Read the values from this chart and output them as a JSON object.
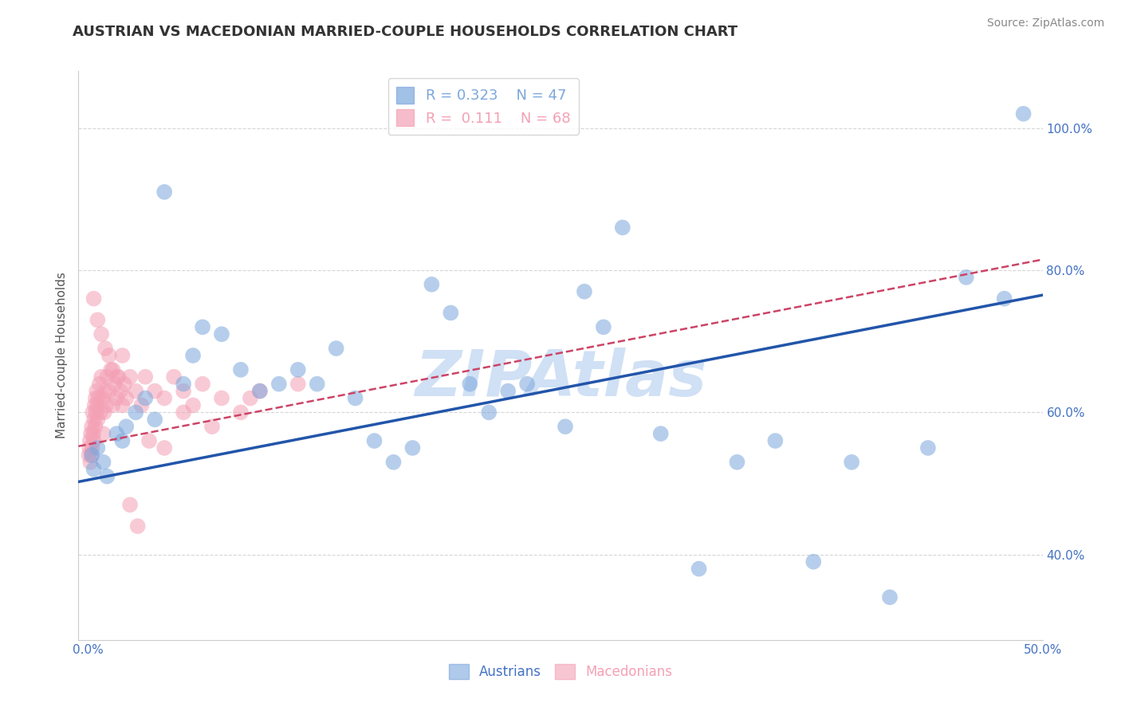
{
  "title": "AUSTRIAN VS MACEDONIAN MARRIED-COUPLE HOUSEHOLDS CORRELATION CHART",
  "source": "Source: ZipAtlas.com",
  "ylabel": "Married-couple Households",
  "x_tick_labels": [
    "0.0%",
    "50.0%"
  ],
  "x_tick_values": [
    0.0,
    50.0
  ],
  "y_tick_labels": [
    "40.0%",
    "60.0%",
    "80.0%",
    "100.0%"
  ],
  "y_tick_values": [
    40.0,
    60.0,
    80.0,
    100.0
  ],
  "xlim": [
    -0.5,
    50.0
  ],
  "ylim": [
    28.0,
    108.0
  ],
  "blue_color": "#7BA7DC",
  "pink_color": "#F4A0B5",
  "blue_line_color": "#2255AA",
  "pink_line_color": "#CC4466",
  "watermark_color": "#D0E0F5",
  "background_color": "#FFFFFF",
  "grid_color": "#CCCCCC",
  "title_color": "#333333",
  "tick_color": "#4472C4",
  "source_color": "#888888",
  "r_austrians": 0.323,
  "n_austrians": 47,
  "r_macedonians": 0.111,
  "n_macedonians": 68,
  "austrians_x": [
    0.2,
    0.3,
    0.5,
    0.8,
    1.0,
    1.5,
    1.8,
    2.0,
    2.5,
    3.0,
    3.5,
    4.0,
    5.0,
    5.5,
    6.0,
    7.0,
    8.0,
    9.0,
    10.0,
    11.0,
    12.0,
    13.0,
    14.0,
    15.0,
    16.0,
    17.0,
    18.0,
    19.0,
    20.0,
    21.0,
    22.0,
    23.0,
    25.0,
    26.0,
    27.0,
    28.0,
    30.0,
    32.0,
    34.0,
    36.0,
    38.0,
    40.0,
    42.0,
    44.0,
    46.0,
    48.0,
    49.0
  ],
  "austrians_y": [
    54.0,
    52.0,
    55.0,
    53.0,
    51.0,
    57.0,
    56.0,
    58.0,
    60.0,
    62.0,
    59.0,
    91.0,
    64.0,
    68.0,
    72.0,
    71.0,
    66.0,
    63.0,
    64.0,
    66.0,
    64.0,
    69.0,
    62.0,
    56.0,
    53.0,
    55.0,
    78.0,
    74.0,
    64.0,
    60.0,
    63.0,
    64.0,
    58.0,
    77.0,
    72.0,
    86.0,
    57.0,
    38.0,
    53.0,
    56.0,
    39.0,
    53.0,
    34.0,
    55.0,
    79.0,
    76.0,
    102.0
  ],
  "macedonians_x": [
    0.05,
    0.08,
    0.1,
    0.12,
    0.15,
    0.18,
    0.2,
    0.22,
    0.25,
    0.28,
    0.3,
    0.32,
    0.35,
    0.38,
    0.4,
    0.42,
    0.45,
    0.48,
    0.5,
    0.55,
    0.6,
    0.65,
    0.7,
    0.75,
    0.8,
    0.85,
    0.9,
    0.95,
    1.0,
    1.1,
    1.2,
    1.3,
    1.4,
    1.5,
    1.6,
    1.7,
    1.8,
    1.9,
    2.0,
    2.2,
    2.5,
    2.8,
    3.0,
    3.5,
    4.0,
    4.5,
    5.0,
    5.5,
    6.0,
    7.0,
    8.0,
    9.0,
    0.3,
    0.5,
    0.7,
    0.9,
    1.1,
    1.3,
    1.5,
    1.8,
    2.2,
    2.6,
    3.2,
    4.0,
    5.0,
    6.5,
    8.5,
    11.0
  ],
  "macedonians_y": [
    54.0,
    55.0,
    56.0,
    53.0,
    57.0,
    54.0,
    58.0,
    55.0,
    60.0,
    57.0,
    56.0,
    59.0,
    61.0,
    58.0,
    62.0,
    60.0,
    63.0,
    61.0,
    59.0,
    62.0,
    64.0,
    60.0,
    65.0,
    62.0,
    57.0,
    60.0,
    63.0,
    61.0,
    65.0,
    63.0,
    66.0,
    61.0,
    64.0,
    62.0,
    65.0,
    63.0,
    61.0,
    64.0,
    62.0,
    65.0,
    63.0,
    61.0,
    65.0,
    63.0,
    62.0,
    65.0,
    63.0,
    61.0,
    64.0,
    62.0,
    60.0,
    63.0,
    76.0,
    73.0,
    71.0,
    69.0,
    68.0,
    66.0,
    65.0,
    68.0,
    47.0,
    44.0,
    56.0,
    55.0,
    60.0,
    58.0,
    62.0,
    64.0
  ]
}
